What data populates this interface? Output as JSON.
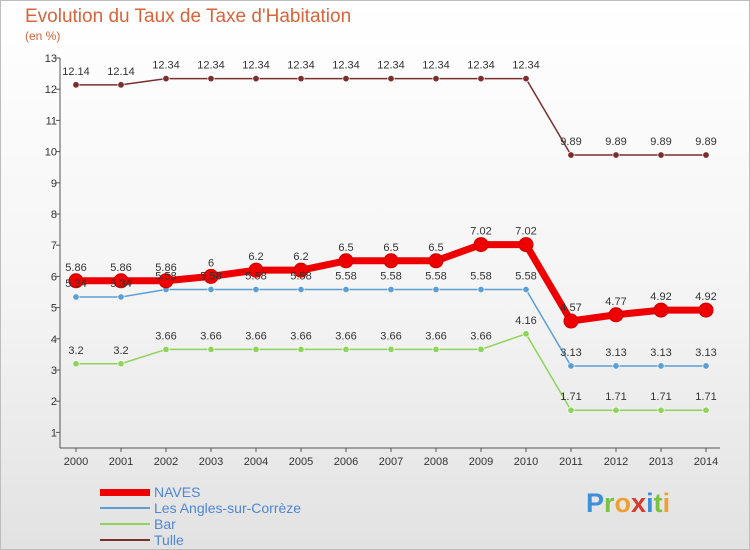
{
  "header": {
    "title": "Evolution du Taux de Taxe d'Habitation",
    "subtitle": "(en %)"
  },
  "logo": {
    "letters": [
      "P",
      "r",
      "o",
      "x",
      "i",
      "t",
      "i"
    ],
    "colors": [
      "#3d8fd8",
      "#7cc242",
      "#f0a030",
      "#d83a2a",
      "#3d8fd8",
      "#7cc242",
      "#f0a030"
    ]
  },
  "chart_data": {
    "type": "line",
    "title": "Evolution du Taux de Taxe d'Habitation",
    "ylabel": "(en %)",
    "xlabel": "",
    "x": [
      "2000",
      "2001",
      "2002",
      "2003",
      "2004",
      "2005",
      "2006",
      "2007",
      "2008",
      "2009",
      "2010",
      "2011",
      "2012",
      "2013",
      "2014"
    ],
    "ylim": [
      0.5,
      13
    ],
    "yticks": [
      1,
      2,
      3,
      4,
      5,
      6,
      7,
      8,
      9,
      10,
      11,
      12,
      13
    ],
    "grid": false,
    "legend": "bottom-left",
    "series": [
      {
        "name": "NAVES",
        "color": "#ee0000",
        "values": [
          5.86,
          5.86,
          5.86,
          6,
          6.2,
          6.2,
          6.5,
          6.5,
          6.5,
          7.02,
          7.02,
          4.57,
          4.77,
          4.92,
          4.92
        ],
        "labels": [
          "5.86",
          "5.86",
          "5.86",
          "6",
          "6.2",
          "6.2",
          "6.5",
          "6.5",
          "6.5",
          "7.02",
          "7.02",
          "4.57",
          "4.77",
          "4.92",
          "4.92"
        ]
      },
      {
        "name": "Les Angles-sur-Corrèze",
        "color": "#5b9fd4",
        "values": [
          5.34,
          5.34,
          5.58,
          5.58,
          5.58,
          5.58,
          5.58,
          5.58,
          5.58,
          5.58,
          5.58,
          3.13,
          3.13,
          3.13,
          3.13
        ],
        "labels": [
          "5.34",
          "5.34",
          "5.58",
          "5.58",
          "5.58",
          "5.58",
          "5.58",
          "5.58",
          "5.58",
          "5.58",
          "5.58",
          "3.13",
          "3.13",
          "3.13",
          "3.13"
        ]
      },
      {
        "name": "Bar",
        "color": "#8fd45a",
        "values": [
          3.2,
          3.2,
          3.66,
          3.66,
          3.66,
          3.66,
          3.66,
          3.66,
          3.66,
          3.66,
          4.16,
          1.71,
          1.71,
          1.71,
          1.71
        ],
        "labels": [
          "3.2",
          "3.2",
          "3.66",
          "3.66",
          "3.66",
          "3.66",
          "3.66",
          "3.66",
          "3.66",
          "3.66",
          "4.16",
          "1.71",
          "1.71",
          "1.71",
          "1.71"
        ]
      },
      {
        "name": "Tulle",
        "color": "#7a2e2e",
        "values": [
          12.14,
          12.14,
          12.34,
          12.34,
          12.34,
          12.34,
          12.34,
          12.34,
          12.34,
          12.34,
          12.34,
          9.89,
          9.89,
          9.89,
          9.89
        ],
        "labels": [
          "12.14",
          "12.14",
          "12.34",
          "12.34",
          "12.34",
          "12.34",
          "12.34",
          "12.34",
          "12.34",
          "12.34",
          "12.34",
          "9.89",
          "9.89",
          "9.89",
          "9.89"
        ]
      }
    ]
  }
}
